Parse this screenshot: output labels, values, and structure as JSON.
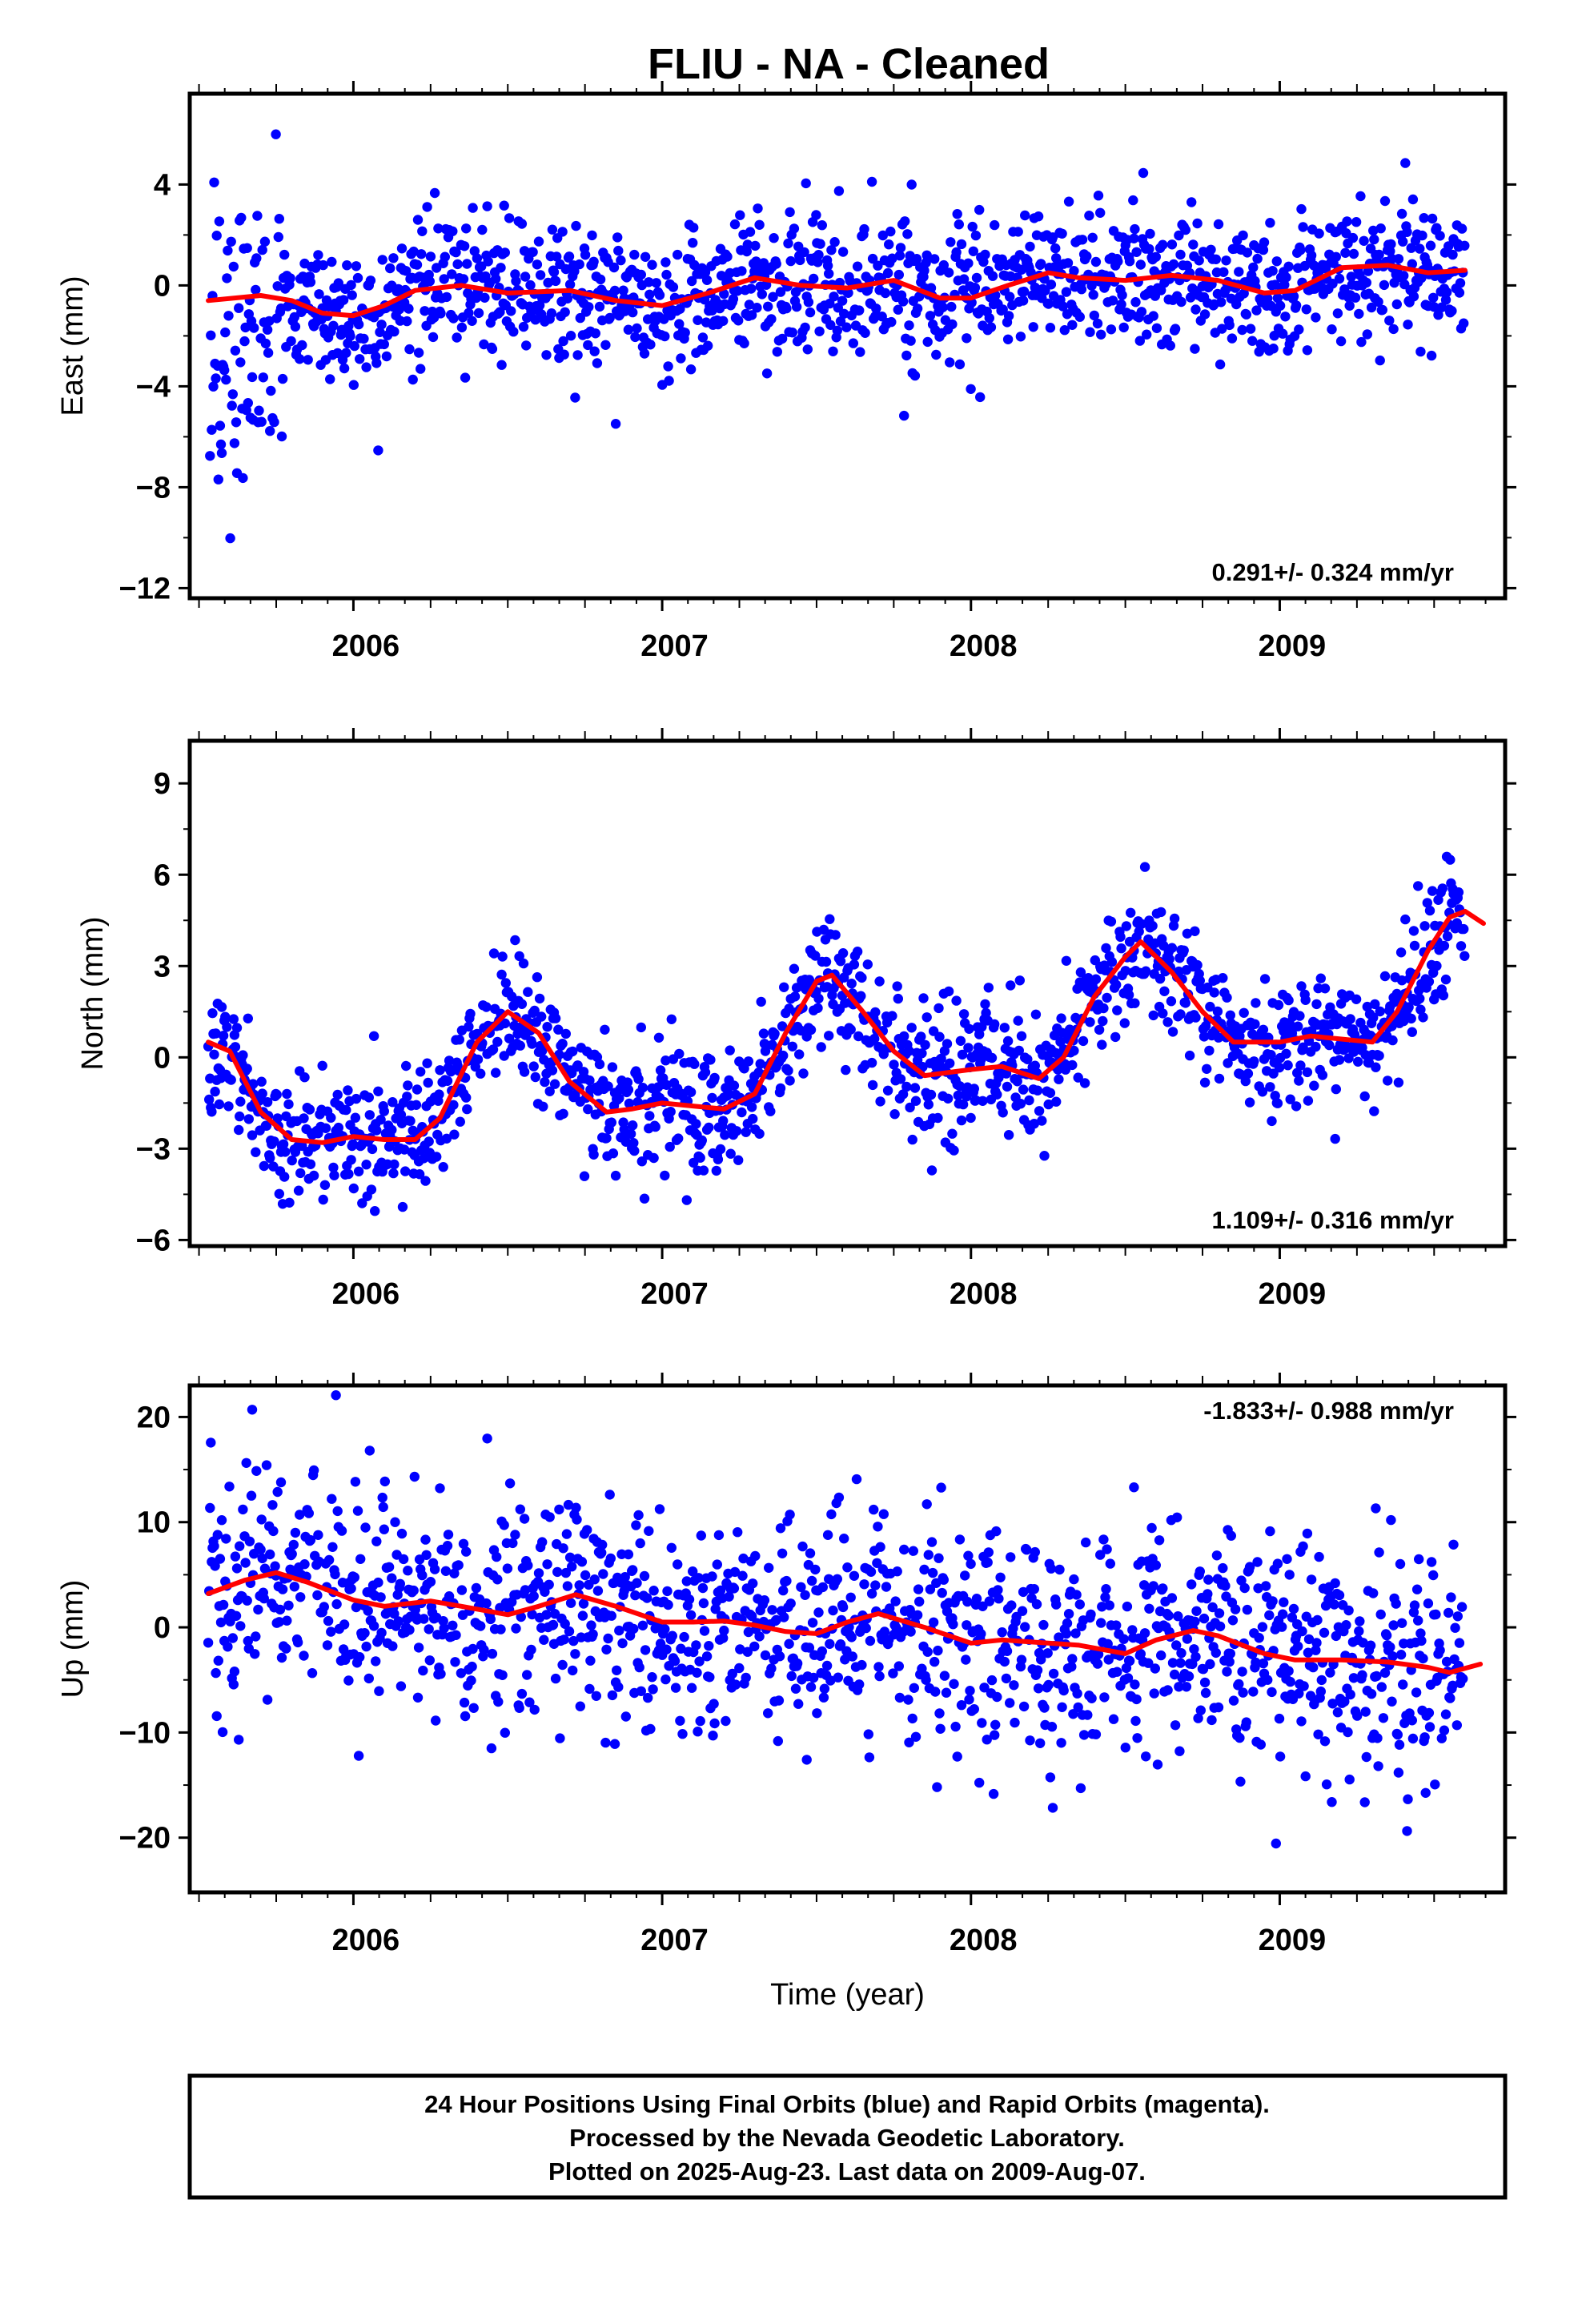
{
  "title": "FLIU  - NA - Cleaned",
  "footer": {
    "lines": [
      "24 Hour Positions Using Final Orbits (blue) and Rapid Orbits (magenta).",
      "Processed by the Nevada Geodetic Laboratory.",
      "Plotted on 2025-Aug-23. Last data on 2009-Aug-07."
    ]
  },
  "colors": {
    "points": "#0000ff",
    "fit": "#ff0000",
    "frame": "#000000"
  },
  "chart_data": [
    {
      "type": "scatter",
      "ylabel": "East (mm)",
      "xlabel": "",
      "xlim": [
        2005.47,
        2009.73
      ],
      "ylim": [
        -12.4,
        7.6
      ],
      "yticks": [
        -12,
        -8,
        -4,
        0,
        4
      ],
      "xticks": [
        2006,
        2007,
        2008,
        2009
      ],
      "rate_text": "0.291+/- 0.324 mm/yr",
      "rate_position": "bottom-right",
      "trend": [
        [
          2005.53,
          -0.6
        ],
        [
          2005.7,
          -0.4
        ],
        [
          2005.8,
          -0.6
        ],
        [
          2005.9,
          -1.1
        ],
        [
          2006.0,
          -1.2
        ],
        [
          2006.1,
          -0.8
        ],
        [
          2006.2,
          -0.2
        ],
        [
          2006.35,
          0.0
        ],
        [
          2006.5,
          -0.3
        ],
        [
          2006.7,
          -0.2
        ],
        [
          2006.85,
          -0.6
        ],
        [
          2007.0,
          -0.8
        ],
        [
          2007.15,
          -0.3
        ],
        [
          2007.3,
          0.3
        ],
        [
          2007.45,
          0.0
        ],
        [
          2007.6,
          -0.1
        ],
        [
          2007.75,
          0.2
        ],
        [
          2007.9,
          -0.5
        ],
        [
          2008.0,
          -0.5
        ],
        [
          2008.12,
          0.0
        ],
        [
          2008.25,
          0.5
        ],
        [
          2008.35,
          0.3
        ],
        [
          2008.5,
          0.2
        ],
        [
          2008.65,
          0.4
        ],
        [
          2008.8,
          0.2
        ],
        [
          2008.95,
          -0.3
        ],
        [
          2009.05,
          -0.2
        ],
        [
          2009.2,
          0.7
        ],
        [
          2009.35,
          0.8
        ],
        [
          2009.48,
          0.5
        ],
        [
          2009.6,
          0.6
        ]
      ]
    },
    {
      "type": "scatter",
      "ylabel": "North (mm)",
      "xlabel": "",
      "xlim": [
        2005.47,
        2009.73
      ],
      "ylim": [
        -6.2,
        10.4
      ],
      "yticks": [
        -6,
        -3,
        0,
        3,
        6,
        9
      ],
      "xticks": [
        2006,
        2007,
        2008,
        2009
      ],
      "rate_text": "1.109+/- 0.316 mm/yr",
      "rate_position": "bottom-right",
      "trend": [
        [
          2005.53,
          0.5
        ],
        [
          2005.6,
          0.2
        ],
        [
          2005.7,
          -1.8
        ],
        [
          2005.8,
          -2.7
        ],
        [
          2005.9,
          -2.8
        ],
        [
          2006.0,
          -2.6
        ],
        [
          2006.1,
          -2.7
        ],
        [
          2006.2,
          -2.7
        ],
        [
          2006.28,
          -2.0
        ],
        [
          2006.4,
          0.5
        ],
        [
          2006.5,
          1.5
        ],
        [
          2006.6,
          0.8
        ],
        [
          2006.7,
          -0.8
        ],
        [
          2006.82,
          -1.8
        ],
        [
          2006.9,
          -1.7
        ],
        [
          2007.0,
          -1.5
        ],
        [
          2007.1,
          -1.6
        ],
        [
          2007.2,
          -1.7
        ],
        [
          2007.3,
          -1.2
        ],
        [
          2007.4,
          0.8
        ],
        [
          2007.5,
          2.5
        ],
        [
          2007.55,
          2.7
        ],
        [
          2007.65,
          1.5
        ],
        [
          2007.75,
          0.2
        ],
        [
          2007.85,
          -0.6
        ],
        [
          2008.0,
          -0.4
        ],
        [
          2008.1,
          -0.3
        ],
        [
          2008.22,
          -0.7
        ],
        [
          2008.3,
          0.0
        ],
        [
          2008.4,
          2.0
        ],
        [
          2008.5,
          3.3
        ],
        [
          2008.55,
          3.8
        ],
        [
          2008.65,
          2.8
        ],
        [
          2008.75,
          1.5
        ],
        [
          2008.85,
          0.5
        ],
        [
          2009.0,
          0.5
        ],
        [
          2009.1,
          0.7
        ],
        [
          2009.2,
          0.6
        ],
        [
          2009.3,
          0.5
        ],
        [
          2009.38,
          1.5
        ],
        [
          2009.48,
          3.5
        ],
        [
          2009.55,
          4.6
        ],
        [
          2009.6,
          4.8
        ],
        [
          2009.66,
          4.4
        ]
      ]
    },
    {
      "type": "scatter",
      "ylabel": "Up (mm)",
      "xlabel": "Time (year)",
      "xlim": [
        2005.47,
        2009.73
      ],
      "ylim": [
        -25.2,
        23.0
      ],
      "yticks": [
        -20,
        -10,
        0,
        10,
        20
      ],
      "xticks": [
        2006,
        2007,
        2008,
        2009
      ],
      "rate_text": "-1.833+/- 0.988 mm/yr",
      "rate_position": "top-right",
      "trend": [
        [
          2005.53,
          3.2
        ],
        [
          2005.65,
          4.5
        ],
        [
          2005.75,
          5.2
        ],
        [
          2005.85,
          4.3
        ],
        [
          2006.0,
          2.6
        ],
        [
          2006.1,
          2.0
        ],
        [
          2006.25,
          2.5
        ],
        [
          2006.35,
          2.0
        ],
        [
          2006.5,
          1.2
        ],
        [
          2006.6,
          2.0
        ],
        [
          2006.72,
          3.1
        ],
        [
          2006.85,
          2.0
        ],
        [
          2007.0,
          0.5
        ],
        [
          2007.1,
          0.5
        ],
        [
          2007.2,
          0.6
        ],
        [
          2007.3,
          0.2
        ],
        [
          2007.4,
          -0.4
        ],
        [
          2007.5,
          -0.6
        ],
        [
          2007.6,
          0.5
        ],
        [
          2007.7,
          1.3
        ],
        [
          2007.85,
          0.0
        ],
        [
          2008.0,
          -1.5
        ],
        [
          2008.1,
          -1.2
        ],
        [
          2008.25,
          -1.5
        ],
        [
          2008.35,
          -1.7
        ],
        [
          2008.5,
          -2.5
        ],
        [
          2008.6,
          -1.2
        ],
        [
          2008.72,
          -0.3
        ],
        [
          2008.8,
          -0.8
        ],
        [
          2008.95,
          -2.5
        ],
        [
          2009.05,
          -3.1
        ],
        [
          2009.2,
          -3.1
        ],
        [
          2009.35,
          -3.3
        ],
        [
          2009.48,
          -3.8
        ],
        [
          2009.55,
          -4.3
        ],
        [
          2009.65,
          -3.5
        ]
      ]
    }
  ]
}
